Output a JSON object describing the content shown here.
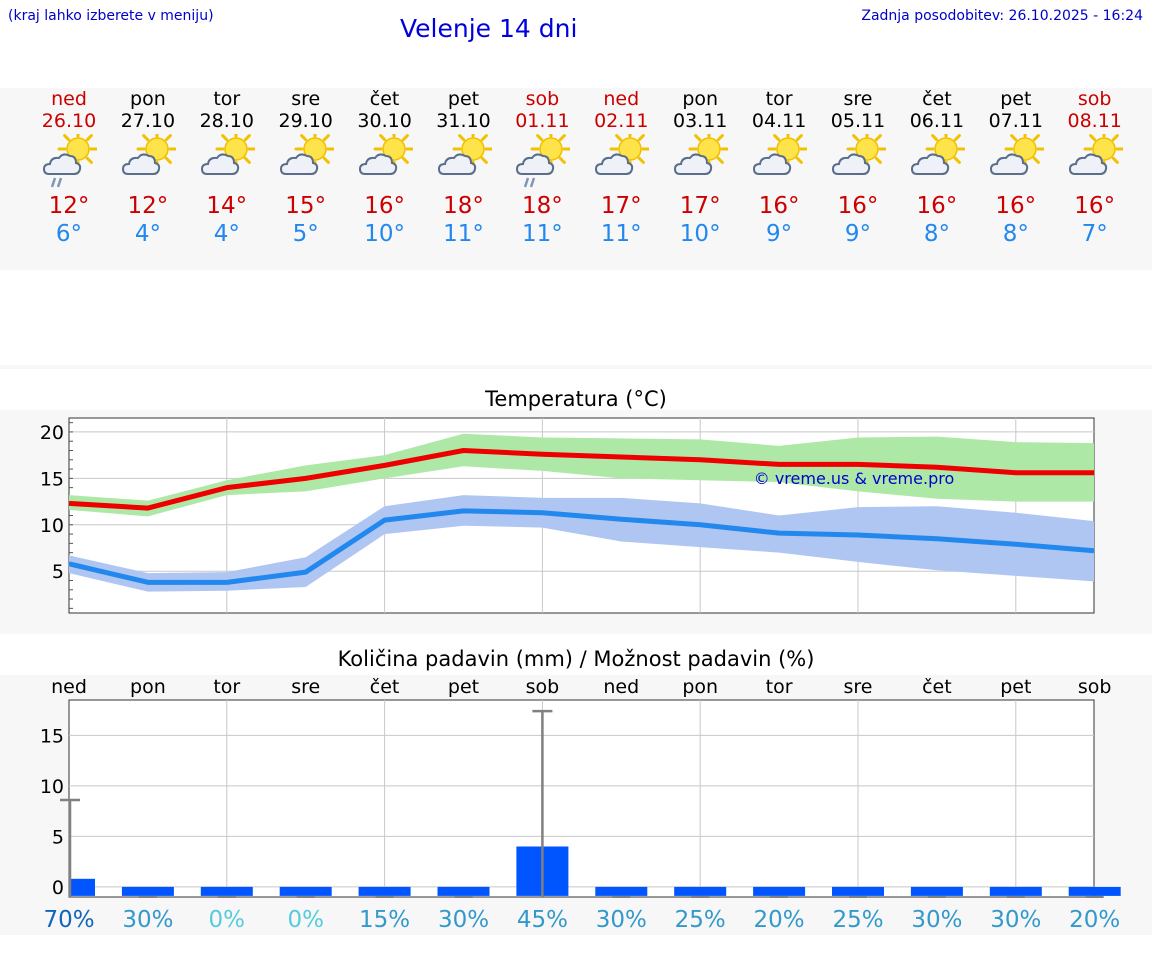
{
  "header": {
    "region_hint": "(kraj lahko izberete v meniju)",
    "title": "Velenje 14 dni",
    "last_update": "Zadnja posodobitev: 26.10.2025 - 16:24"
  },
  "days": [
    {
      "name": "ned",
      "date": "26.10",
      "weekend": true,
      "icon": "sun-cloud-rain-icon",
      "tmax": "12°",
      "tmin": "6°"
    },
    {
      "name": "pon",
      "date": "27.10",
      "weekend": false,
      "icon": "sun-cloud-icon",
      "tmax": "12°",
      "tmin": "4°"
    },
    {
      "name": "tor",
      "date": "28.10",
      "weekend": false,
      "icon": "sun-cloud-icon",
      "tmax": "14°",
      "tmin": "4°"
    },
    {
      "name": "sre",
      "date": "29.10",
      "weekend": false,
      "icon": "sun-cloud-icon",
      "tmax": "15°",
      "tmin": "5°"
    },
    {
      "name": "čet",
      "date": "30.10",
      "weekend": false,
      "icon": "sun-cloud-icon",
      "tmax": "16°",
      "tmin": "10°"
    },
    {
      "name": "pet",
      "date": "31.10",
      "weekend": false,
      "icon": "sun-cloud-icon",
      "tmax": "18°",
      "tmin": "11°"
    },
    {
      "name": "sob",
      "date": "01.11",
      "weekend": true,
      "icon": "sun-cloud-rain-icon",
      "tmax": "18°",
      "tmin": "11°"
    },
    {
      "name": "ned",
      "date": "02.11",
      "weekend": true,
      "icon": "sun-cloud-icon",
      "tmax": "17°",
      "tmin": "11°"
    },
    {
      "name": "pon",
      "date": "03.11",
      "weekend": false,
      "icon": "sun-cloud-icon",
      "tmax": "17°",
      "tmin": "10°"
    },
    {
      "name": "tor",
      "date": "04.11",
      "weekend": false,
      "icon": "sun-cloud-icon",
      "tmax": "16°",
      "tmin": "9°"
    },
    {
      "name": "sre",
      "date": "05.11",
      "weekend": false,
      "icon": "sun-cloud-icon",
      "tmax": "16°",
      "tmin": "9°"
    },
    {
      "name": "čet",
      "date": "06.11",
      "weekend": false,
      "icon": "sun-cloud-icon",
      "tmax": "16°",
      "tmin": "8°"
    },
    {
      "name": "pet",
      "date": "07.11",
      "weekend": false,
      "icon": "sun-cloud-icon",
      "tmax": "16°",
      "tmin": "8°"
    },
    {
      "name": "sob",
      "date": "08.11",
      "weekend": true,
      "icon": "sun-cloud-icon",
      "tmax": "16°",
      "tmin": "7°"
    }
  ],
  "colors": {
    "weekend": "#cc0000",
    "tmax": "#ee0000",
    "tmin": "#2288ee",
    "tmax_band": "#aee8a6",
    "tmin_band": "#afc6f2",
    "precip_bar": "#0055ff",
    "whisker": "#808080"
  },
  "chart_data": [
    {
      "type": "line",
      "title": "Temperatura (°C)",
      "ylim": [
        0.5,
        21.5
      ],
      "yticks": [
        "5",
        "10",
        "15",
        "20"
      ],
      "watermark": "© vreme.us & vreme.pro",
      "series": [
        {
          "name": "max",
          "values": [
            12.3,
            11.8,
            14,
            15,
            16.4,
            18,
            17.6,
            17.3,
            17,
            16.5,
            16.5,
            16.2,
            15.6,
            15.6
          ],
          "band_upper": [
            13.2,
            12.6,
            14.8,
            16.4,
            17.5,
            19.8,
            19.4,
            19.3,
            19.2,
            18.5,
            19.4,
            19.5,
            18.9,
            18.8
          ],
          "band_lower": [
            11.6,
            10.9,
            13.2,
            13.6,
            15.0,
            16.3,
            15.8,
            15.0,
            14.8,
            14.6,
            13.6,
            12.8,
            12.5,
            12.5
          ]
        },
        {
          "name": "min",
          "values": [
            5.8,
            3.8,
            3.8,
            4.9,
            10.5,
            11.5,
            11.3,
            10.6,
            10,
            9.1,
            8.9,
            8.5,
            7.9,
            7.2
          ],
          "band_upper": [
            6.7,
            4.8,
            4.9,
            6.5,
            12.0,
            13.2,
            12.9,
            12.9,
            12.3,
            11.0,
            11.9,
            12.0,
            11.3,
            10.4
          ],
          "band_lower": [
            4.8,
            2.8,
            2.9,
            3.3,
            9.0,
            9.9,
            9.7,
            8.2,
            7.6,
            7.0,
            6.0,
            5.1,
            4.5,
            3.9
          ]
        }
      ]
    },
    {
      "type": "bar",
      "title": "Količina padavin (mm) / Možnost padavin (%)",
      "ylim": [
        -1,
        18.5
      ],
      "yticks": [
        "0",
        "5",
        "10",
        "15"
      ],
      "categories": [
        "ned",
        "pon",
        "tor",
        "sre",
        "čet",
        "pet",
        "sob",
        "ned",
        "pon",
        "tor",
        "sre",
        "čet",
        "pet",
        "sob"
      ],
      "values": [
        0.8,
        0,
        0,
        0,
        0,
        0,
        4,
        0,
        0,
        0,
        0,
        0,
        0,
        0
      ],
      "max_values": [
        8.6,
        0,
        0,
        0,
        0,
        0,
        17.4,
        0,
        0,
        0,
        0,
        0,
        0,
        0
      ],
      "probability": [
        "70%",
        "30%",
        "0%",
        "0%",
        "15%",
        "30%",
        "45%",
        "30%",
        "25%",
        "20%",
        "25%",
        "30%",
        "30%",
        "20%"
      ],
      "probability_colors": [
        "#1166bb",
        "#3399cc",
        "#55ccdd",
        "#55ccdd",
        "#3399cc",
        "#3399cc",
        "#3399cc",
        "#3399cc",
        "#3399cc",
        "#3399cc",
        "#3399cc",
        "#3399cc",
        "#3399cc",
        "#3399cc"
      ]
    }
  ]
}
